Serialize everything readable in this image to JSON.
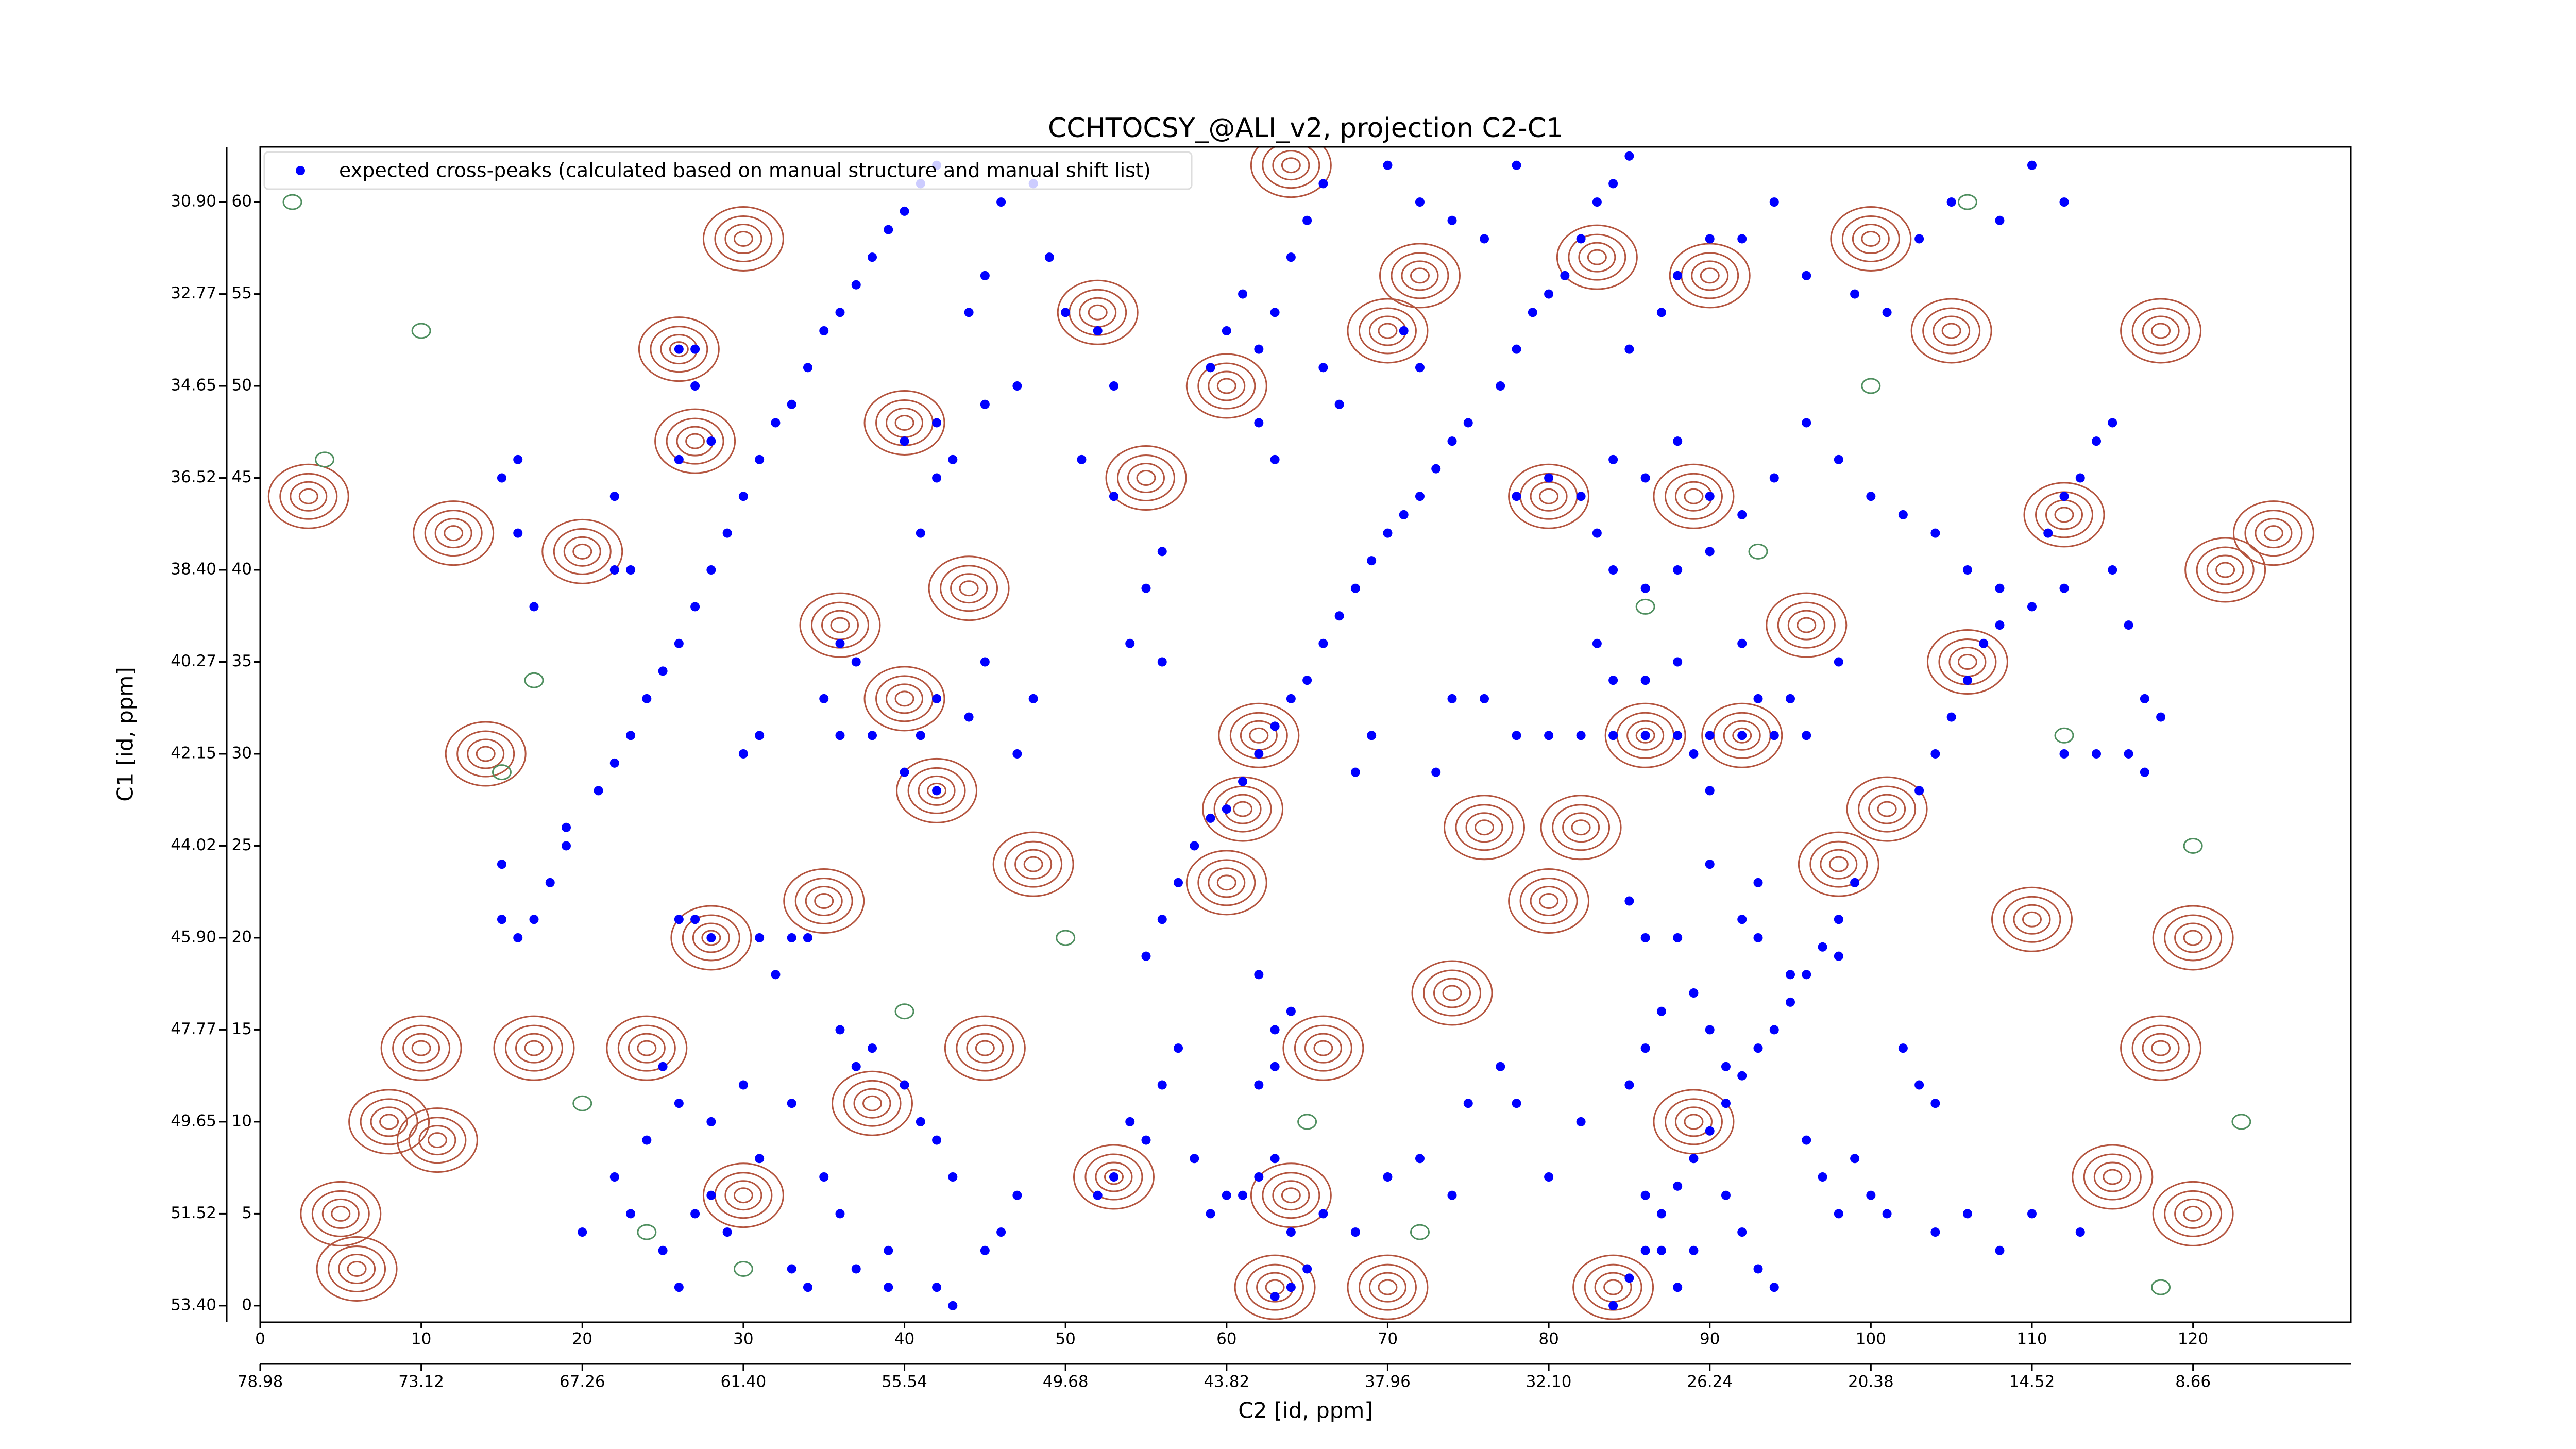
{
  "chart_data": {
    "type": "scatter",
    "title": "CCHTOCSY_@ALI_v2, projection C2-C1",
    "xlabel": "C2 [id, ppm]",
    "ylabel": "C1 [id, ppm]",
    "legend": "upper left",
    "xlim": [
      0,
      129.8
    ],
    "ylim": [
      -0.9,
      63
    ],
    "xticks": [
      0,
      10,
      20,
      30,
      40,
      50,
      60,
      70,
      80,
      90,
      100,
      110,
      120
    ],
    "yticks": [
      0,
      5,
      10,
      15,
      20,
      25,
      30,
      35,
      40,
      45,
      50,
      55,
      60
    ],
    "x2lim": [
      0,
      129.8
    ],
    "x2ticks": [
      {
        "value": 0,
        "label": "78.98"
      },
      {
        "value": 10,
        "label": "73.12"
      },
      {
        "value": 20,
        "label": "67.26"
      },
      {
        "value": 30,
        "label": "61.40"
      },
      {
        "value": 40,
        "label": "55.54"
      },
      {
        "value": 50,
        "label": "49.68"
      },
      {
        "value": 60,
        "label": "43.82"
      },
      {
        "value": 70,
        "label": "37.96"
      },
      {
        "value": 80,
        "label": "32.10"
      },
      {
        "value": 90,
        "label": "26.24"
      },
      {
        "value": 100,
        "label": "20.38"
      },
      {
        "value": 110,
        "label": "14.52"
      },
      {
        "value": 120,
        "label": "8.66"
      }
    ],
    "y2lim": [
      -0.9,
      63
    ],
    "y2ticks": [
      {
        "value": 0,
        "label": "53.40"
      },
      {
        "value": 5,
        "label": "51.52"
      },
      {
        "value": 10,
        "label": "49.65"
      },
      {
        "value": 15,
        "label": "47.77"
      },
      {
        "value": 20,
        "label": "45.90"
      },
      {
        "value": 25,
        "label": "44.02"
      },
      {
        "value": 30,
        "label": "42.15"
      },
      {
        "value": 35,
        "label": "40.27"
      },
      {
        "value": 40,
        "label": "38.40"
      },
      {
        "value": 45,
        "label": "36.52"
      },
      {
        "value": 50,
        "label": "34.65"
      },
      {
        "value": 55,
        "label": "32.77"
      },
      {
        "value": 60,
        "label": "30.90"
      }
    ],
    "contours": [
      {
        "color": "#b4553f",
        "x": [
          36,
          44,
          62,
          61,
          26,
          27,
          12,
          8,
          5,
          10,
          11,
          24,
          20,
          30,
          40,
          42,
          55,
          64,
          66,
          64,
          63,
          70,
          84,
          89,
          92,
          86,
          98,
          101,
          106,
          112,
          122,
          118,
          115,
          120,
          105,
          90,
          83,
          72,
          52,
          35,
          28,
          30,
          38,
          45,
          53,
          48,
          60,
          74,
          80,
          96,
          89,
          80,
          110,
          120,
          100,
          118,
          125,
          3,
          14,
          17,
          40,
          6,
          76,
          82,
          70,
          60
        ],
        "y": [
          37,
          39,
          31,
          27,
          52,
          47,
          42,
          10,
          5,
          14,
          9,
          14,
          41,
          58,
          33,
          28,
          45,
          62,
          14,
          6,
          1,
          1,
          1,
          10,
          31,
          31,
          24,
          27,
          35,
          43,
          40,
          14,
          7,
          5,
          53,
          56,
          57,
          56,
          54,
          22,
          20,
          6,
          11,
          14,
          7,
          24,
          23,
          17,
          22,
          37,
          44,
          44,
          21,
          20,
          58,
          53,
          42,
          44,
          30,
          14,
          48,
          2,
          26,
          26,
          53,
          50
        ]
      },
      {
        "color": "#4f8f5f",
        "x": [
          2,
          10,
          4,
          17,
          15,
          20,
          24,
          30,
          65,
          86,
          93,
          106,
          112,
          120,
          123,
          118,
          40,
          72,
          50,
          100
        ],
        "y": [
          60,
          53,
          46,
          34,
          29,
          11,
          4,
          2,
          10,
          38,
          41,
          60,
          31,
          25,
          10,
          1,
          16,
          4,
          20,
          50
        ]
      }
    ],
    "series": [
      {
        "name": "expected cross-peaks (calculated based on manual structure and manual shift list)",
        "color": "#0000ff",
        "x": [
          21,
          22,
          23,
          24,
          25,
          26,
          27,
          28,
          29,
          30,
          31,
          32,
          33,
          34,
          35,
          36,
          37,
          38,
          39,
          40,
          41,
          42,
          55,
          56,
          57,
          58,
          59,
          60,
          61,
          62,
          63,
          64,
          65,
          66,
          67,
          68,
          69,
          70,
          71,
          72,
          73,
          74,
          75,
          84,
          85,
          86,
          87,
          88,
          89,
          90,
          91,
          92,
          93,
          94,
          95,
          96,
          97,
          98,
          99,
          77,
          78,
          79,
          80,
          81,
          82,
          83,
          84,
          85,
          103,
          104,
          105,
          106,
          107,
          108,
          111,
          112,
          113,
          114,
          115,
          15,
          16,
          16,
          17,
          15,
          16,
          17,
          15,
          18,
          19,
          19,
          22,
          22,
          23,
          26,
          27,
          27,
          26,
          28,
          30,
          31,
          33,
          34,
          28,
          27,
          26,
          31,
          32,
          36,
          37,
          35,
          36,
          38,
          40,
          41,
          42,
          44,
          45,
          42,
          47,
          48,
          41,
          42,
          43,
          40,
          42,
          36,
          37,
          38,
          40,
          41,
          42,
          43,
          35,
          36,
          39,
          37,
          33,
          34,
          28,
          27,
          29,
          25,
          26,
          42,
          43,
          45,
          46,
          47,
          39,
          52,
          53,
          54,
          55,
          56,
          57,
          58,
          59,
          60,
          61,
          62,
          63,
          64,
          65,
          63,
          62,
          63,
          64,
          62,
          64,
          63,
          66,
          68,
          70,
          72,
          74,
          75,
          77,
          78,
          80,
          82,
          68,
          69,
          73,
          74,
          76,
          78,
          80,
          82,
          84,
          86,
          88,
          90,
          92,
          94,
          96,
          83,
          84,
          86,
          88,
          89,
          90,
          85,
          86,
          88,
          89,
          90,
          91,
          93,
          95,
          96,
          97,
          98,
          91,
          92,
          93,
          94,
          88,
          87,
          85,
          86,
          87,
          89,
          86,
          99,
          100,
          101,
          104,
          106,
          108,
          110,
          113,
          102,
          103,
          104,
          92,
          93,
          90,
          98,
          78,
          80,
          82,
          84,
          86,
          88,
          90,
          92,
          94,
          96,
          98,
          100,
          102,
          104,
          106,
          108,
          110,
          112,
          115,
          116,
          117,
          118,
          116,
          114,
          112,
          117,
          83,
          84,
          86,
          88,
          90,
          92,
          93,
          95,
          98,
          61,
          62,
          63,
          64,
          65,
          66,
          70,
          72,
          74,
          76,
          78,
          85,
          87,
          88,
          90,
          92,
          94,
          96,
          99,
          101,
          103,
          105,
          108,
          110,
          112,
          71,
          72,
          66,
          67,
          62,
          63,
          59,
          60,
          56,
          55,
          53,
          51,
          47,
          45,
          54,
          56,
          44,
          45,
          46,
          48,
          49,
          50,
          52,
          53,
          25,
          26,
          24,
          22,
          20,
          23,
          30,
          31,
          33,
          28
        ],
        "values": [
          28,
          29.5,
          31,
          33,
          34.5,
          36,
          38,
          40,
          42,
          44,
          46,
          48,
          49,
          51,
          53,
          54,
          55.5,
          57,
          58.5,
          59.5,
          61,
          62,
          19,
          21,
          23,
          25,
          26.5,
          27,
          28.5,
          30,
          31.5,
          33,
          34,
          36,
          37.5,
          39,
          40.5,
          42,
          43,
          44,
          45.5,
          47,
          48,
          0,
          1.5,
          3,
          5,
          6.5,
          8,
          9.5,
          11,
          12.5,
          14,
          15,
          16.5,
          18,
          19.5,
          21,
          23,
          50,
          52,
          54,
          55,
          56,
          58,
          60,
          61,
          62.5,
          28,
          30,
          32,
          34,
          36,
          37,
          42,
          44,
          45,
          47,
          48,
          45,
          42,
          46,
          38,
          21,
          20,
          21,
          24,
          23,
          25,
          26,
          40,
          44,
          40,
          52,
          52,
          50,
          46,
          47,
          30,
          31,
          20,
          20,
          20,
          21,
          21,
          20,
          18,
          36,
          35,
          33,
          31,
          31,
          29,
          31,
          33,
          32,
          35,
          28,
          30,
          33,
          42,
          45,
          46,
          47,
          48,
          15,
          13,
          14,
          12,
          10,
          9,
          7,
          7,
          5,
          3,
          2,
          2,
          1,
          6,
          5,
          4,
          3,
          1,
          1,
          0,
          3,
          4,
          6,
          1,
          6,
          7,
          10,
          9,
          12,
          14,
          8,
          5,
          6,
          6,
          7,
          8,
          4,
          2,
          13,
          12,
          15,
          16,
          18,
          1,
          0.5,
          5,
          4,
          7,
          8,
          6,
          11,
          13,
          11,
          7,
          10,
          29,
          31,
          29,
          33,
          33,
          31,
          31,
          31,
          31,
          31,
          31,
          31,
          31,
          31,
          31,
          36,
          34,
          34,
          35,
          30,
          28,
          22,
          20,
          20,
          17,
          15,
          13,
          20,
          18,
          9,
          7,
          5,
          6,
          4,
          2,
          1,
          1,
          3,
          12,
          14,
          16,
          3,
          6,
          8,
          6,
          5,
          4,
          5,
          3,
          5,
          4,
          14,
          12,
          11,
          21,
          23,
          24,
          19,
          44,
          45,
          44,
          46,
          45,
          47,
          44,
          43,
          45,
          48,
          46,
          44,
          43,
          42,
          40,
          39,
          38,
          39,
          40,
          37,
          33,
          32,
          30,
          30,
          30,
          29,
          42,
          40,
          39,
          40,
          41,
          36,
          33,
          33,
          35,
          55,
          52,
          54,
          57,
          59,
          61,
          62,
          60,
          59,
          58,
          62,
          52,
          54,
          56,
          58,
          58,
          60,
          56,
          55,
          54,
          58,
          60,
          59,
          62,
          60,
          53,
          51,
          51,
          49,
          48,
          46,
          51,
          53,
          41,
          39,
          44,
          46,
          50,
          49,
          36,
          35,
          54,
          56,
          60,
          61,
          57,
          54,
          53,
          50,
          13,
          11,
          9,
          7,
          4,
          5,
          12,
          8,
          11,
          10
        ]
      }
    ]
  }
}
